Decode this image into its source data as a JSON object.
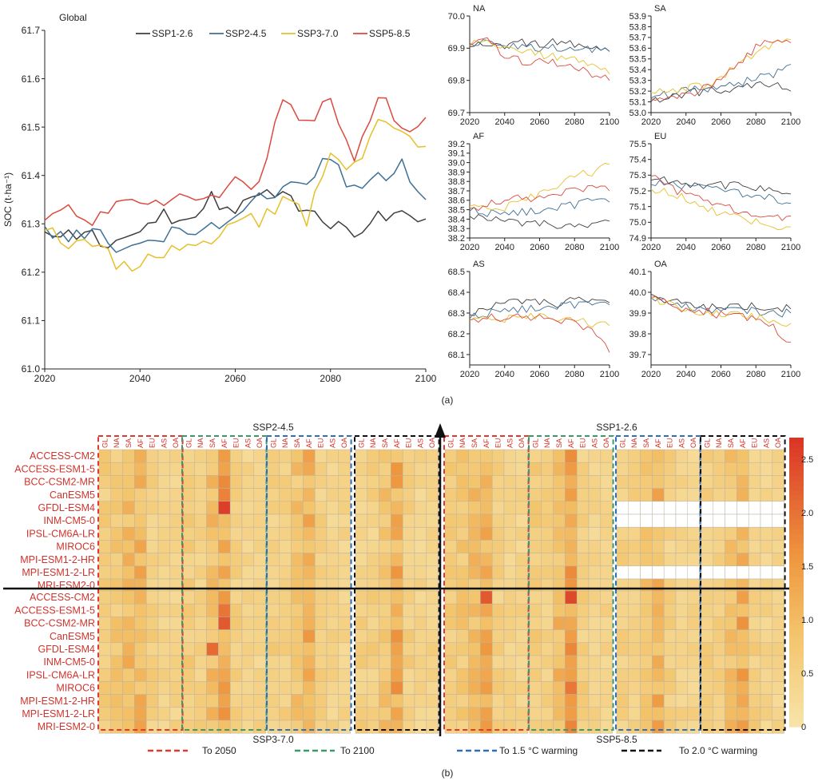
{
  "figure": {
    "panel_a_label": "(a)",
    "panel_b_label": "(b)"
  },
  "colors": {
    "SSP1-2.6": "#3f3f3f",
    "SSP2-4.5": "#3e6f95",
    "SSP3-7.0": "#e5c02b",
    "SSP5-8.5": "#db4a3f",
    "to_2050": "#e03a2f",
    "to_2100": "#3a9a6a",
    "to_1_5": "#2f6fb5",
    "to_2_0": "#111111"
  },
  "chart_data": [
    {
      "id": "global",
      "type": "line",
      "title": "Global",
      "ylabel": "SOC (t·ha⁻¹)",
      "xlabel": "",
      "xlim": [
        2020,
        2100
      ],
      "ylim": [
        61.0,
        61.7
      ],
      "xticks": [
        "2020",
        "2040",
        "2060",
        "2080",
        "2100"
      ],
      "yticks": [
        "61.0",
        "61.1",
        "61.2",
        "61.3",
        "61.4",
        "61.5",
        "61.6",
        "61.7"
      ],
      "legend": [
        "SSP1-2.6",
        "SSP2-4.5",
        "SSP3-7.0",
        "SSP5-8.5"
      ],
      "x_years": [
        2020,
        2025,
        2030,
        2035,
        2040,
        2045,
        2050,
        2055,
        2060,
        2065,
        2070,
        2075,
        2080,
        2085,
        2090,
        2095,
        2100
      ],
      "series": [
        {
          "name": "SSP1-2.6",
          "values": [
            61.29,
            61.27,
            61.28,
            61.25,
            61.3,
            61.32,
            61.31,
            61.35,
            61.33,
            61.36,
            61.36,
            61.33,
            61.3,
            61.27,
            61.33,
            61.31,
            61.31
          ]
        },
        {
          "name": "SSP2-4.5",
          "values": [
            61.3,
            61.26,
            61.29,
            61.24,
            61.25,
            61.28,
            61.28,
            61.3,
            61.31,
            61.35,
            61.37,
            61.39,
            61.44,
            61.37,
            61.4,
            61.42,
            61.35
          ]
        },
        {
          "name": "SSP3-7.0",
          "values": [
            61.29,
            61.26,
            61.26,
            61.22,
            61.21,
            61.24,
            61.26,
            61.27,
            61.32,
            61.3,
            61.35,
            61.31,
            61.45,
            61.41,
            61.5,
            61.48,
            61.46
          ]
        },
        {
          "name": "SSP5-8.5",
          "values": [
            61.31,
            61.33,
            61.31,
            61.34,
            61.35,
            61.34,
            61.36,
            61.35,
            61.4,
            61.38,
            61.55,
            61.5,
            61.56,
            61.44,
            61.57,
            61.49,
            61.52
          ]
        }
      ]
    },
    {
      "id": "NA",
      "type": "line",
      "title": "NA",
      "xlim": [
        2020,
        2100
      ],
      "ylim": [
        69.7,
        70.0
      ],
      "xticks": [
        "2020",
        "2040",
        "2060",
        "2080",
        "2100"
      ],
      "yticks": [
        "69.7",
        "69.8",
        "69.9",
        "70.0"
      ],
      "x_years": [
        2020,
        2030,
        2040,
        2050,
        2060,
        2070,
        2080,
        2090,
        2100
      ],
      "series": [
        {
          "name": "SSP1-2.6",
          "values": [
            69.91,
            69.92,
            69.91,
            69.92,
            69.91,
            69.92,
            69.91,
            69.9,
            69.89
          ]
        },
        {
          "name": "SSP2-4.5",
          "values": [
            69.92,
            69.92,
            69.91,
            69.91,
            69.9,
            69.9,
            69.89,
            69.9,
            69.89
          ]
        },
        {
          "name": "SSP3-7.0",
          "values": [
            69.91,
            69.93,
            69.9,
            69.89,
            69.88,
            69.87,
            69.86,
            69.85,
            69.82
          ]
        },
        {
          "name": "SSP5-8.5",
          "values": [
            69.91,
            69.92,
            69.88,
            69.86,
            69.86,
            69.85,
            69.84,
            69.82,
            69.8
          ]
        }
      ]
    },
    {
      "id": "SA",
      "type": "line",
      "title": "SA",
      "xlim": [
        2020,
        2100
      ],
      "ylim": [
        53.0,
        53.9
      ],
      "xticks": [
        "2020",
        "2040",
        "2060",
        "2080",
        "2100"
      ],
      "yticks": [
        "53.0",
        "53.1",
        "53.2",
        "53.3",
        "53.4",
        "53.5",
        "53.6",
        "53.7",
        "53.8",
        "53.9"
      ],
      "x_years": [
        2020,
        2030,
        2040,
        2050,
        2060,
        2070,
        2080,
        2090,
        2100
      ],
      "series": [
        {
          "name": "SSP1-2.6",
          "values": [
            53.12,
            53.14,
            53.18,
            53.2,
            53.22,
            53.24,
            53.25,
            53.26,
            53.2
          ]
        },
        {
          "name": "SSP2-4.5",
          "values": [
            53.15,
            53.17,
            53.2,
            53.22,
            53.22,
            53.27,
            53.33,
            53.36,
            53.45
          ]
        },
        {
          "name": "SSP3-7.0",
          "values": [
            53.2,
            53.18,
            53.22,
            53.25,
            53.32,
            53.45,
            53.55,
            53.65,
            53.68
          ]
        },
        {
          "name": "SSP5-8.5",
          "values": [
            53.14,
            53.16,
            53.17,
            53.22,
            53.3,
            53.45,
            53.6,
            53.68,
            53.65
          ]
        }
      ]
    },
    {
      "id": "AF",
      "type": "line",
      "title": "AF",
      "xlim": [
        2020,
        2100
      ],
      "ylim": [
        38.2,
        39.2
      ],
      "xticks": [
        "2020",
        "2040",
        "2060",
        "2080",
        "2100"
      ],
      "yticks": [
        "38.2",
        "38.3",
        "38.4",
        "38.5",
        "38.6",
        "38.7",
        "38.8",
        "38.9",
        "39.0",
        "39.1",
        "39.2"
      ],
      "x_years": [
        2020,
        2030,
        2040,
        2050,
        2060,
        2070,
        2080,
        2090,
        2100
      ],
      "series": [
        {
          "name": "SSP1-2.6",
          "values": [
            38.45,
            38.4,
            38.38,
            38.36,
            38.35,
            38.33,
            38.3,
            38.32,
            38.38
          ]
        },
        {
          "name": "SSP2-4.5",
          "values": [
            38.5,
            38.47,
            38.45,
            38.48,
            38.5,
            38.52,
            38.55,
            38.6,
            38.58
          ]
        },
        {
          "name": "SSP3-7.0",
          "values": [
            38.55,
            38.5,
            38.52,
            38.6,
            38.65,
            38.75,
            38.85,
            38.9,
            38.98
          ]
        },
        {
          "name": "SSP5-8.5",
          "values": [
            38.52,
            38.55,
            38.6,
            38.62,
            38.62,
            38.68,
            38.7,
            38.75,
            38.7
          ]
        }
      ]
    },
    {
      "id": "EU",
      "type": "line",
      "title": "EU",
      "xlim": [
        2020,
        2100
      ],
      "ylim": [
        74.9,
        75.5
      ],
      "xticks": [
        "2020",
        "2040",
        "2060",
        "2080",
        "2100"
      ],
      "yticks": [
        "74.9",
        "75.0",
        "75.1",
        "75.2",
        "75.3",
        "75.4",
        "75.5"
      ],
      "x_years": [
        2020,
        2030,
        2040,
        2050,
        2060,
        2070,
        2080,
        2090,
        2100
      ],
      "series": [
        {
          "name": "SSP1-2.6",
          "values": [
            75.28,
            75.27,
            75.25,
            75.24,
            75.24,
            75.23,
            75.22,
            75.22,
            75.18
          ]
        },
        {
          "name": "SSP2-4.5",
          "values": [
            75.25,
            75.24,
            75.23,
            75.22,
            75.2,
            75.18,
            75.17,
            75.15,
            75.12
          ]
        },
        {
          "name": "SSP3-7.0",
          "values": [
            75.22,
            75.18,
            75.15,
            75.1,
            75.05,
            75.02,
            75.0,
            74.98,
            74.97
          ]
        },
        {
          "name": "SSP5-8.5",
          "values": [
            75.3,
            75.22,
            75.18,
            75.15,
            75.12,
            75.08,
            75.05,
            75.02,
            75.04
          ]
        }
      ]
    },
    {
      "id": "AS",
      "type": "line",
      "title": "AS",
      "xlim": [
        2020,
        2100
      ],
      "ylim": [
        68.05,
        68.5
      ],
      "xticks": [
        "2020",
        "2040",
        "2060",
        "2080",
        "2100"
      ],
      "yticks": [
        "68.1",
        "68.2",
        "68.3",
        "68.4",
        "68.5"
      ],
      "x_years": [
        2020,
        2030,
        2040,
        2050,
        2060,
        2070,
        2080,
        2090,
        2100
      ],
      "series": [
        {
          "name": "SSP1-2.6",
          "values": [
            68.3,
            68.32,
            68.35,
            68.36,
            68.35,
            68.34,
            68.36,
            68.35,
            68.35
          ]
        },
        {
          "name": "SSP2-4.5",
          "values": [
            68.28,
            68.3,
            68.31,
            68.32,
            68.33,
            68.33,
            68.34,
            68.34,
            68.34
          ]
        },
        {
          "name": "SSP3-7.0",
          "values": [
            68.27,
            68.27,
            68.27,
            68.28,
            68.28,
            68.27,
            68.26,
            68.25,
            68.24
          ]
        },
        {
          "name": "SSP5-8.5",
          "values": [
            68.27,
            68.28,
            68.27,
            68.28,
            68.28,
            68.27,
            68.25,
            68.22,
            68.11
          ]
        }
      ]
    },
    {
      "id": "OA",
      "type": "line",
      "title": "OA",
      "xlim": [
        2020,
        2100
      ],
      "ylim": [
        39.65,
        40.1
      ],
      "xticks": [
        "2020",
        "2040",
        "2060",
        "2080",
        "2100"
      ],
      "yticks": [
        "39.7",
        "39.8",
        "39.9",
        "40.0",
        "40.1"
      ],
      "x_years": [
        2020,
        2030,
        2040,
        2050,
        2060,
        2070,
        2080,
        2090,
        2100
      ],
      "series": [
        {
          "name": "SSP1-2.6",
          "values": [
            40.0,
            39.95,
            39.95,
            39.93,
            39.93,
            39.93,
            39.93,
            39.93,
            39.92
          ]
        },
        {
          "name": "SSP2-4.5",
          "values": [
            39.98,
            39.95,
            39.93,
            39.92,
            39.92,
            39.91,
            39.91,
            39.9,
            39.9
          ]
        },
        {
          "name": "SSP3-7.0",
          "values": [
            39.97,
            39.94,
            39.92,
            39.9,
            39.9,
            39.89,
            39.88,
            39.87,
            39.85
          ]
        },
        {
          "name": "SSP5-8.5",
          "values": [
            39.98,
            39.94,
            39.92,
            39.91,
            39.89,
            39.88,
            39.87,
            39.83,
            39.76
          ]
        }
      ]
    },
    {
      "id": "heatmap",
      "type": "heatmap",
      "scenario_labels": {
        "top_left": "SSP2-4.5",
        "top_right": "SSP1-2.6",
        "bottom_left": "SSP3-7.0",
        "bottom_right": "SSP5-8.5"
      },
      "regions": [
        "GL",
        "NA",
        "SA",
        "AF",
        "EU",
        "AS",
        "OA"
      ],
      "models": [
        "ACCESS-CM2",
        "ACCESS-ESM1-5",
        "BCC-CSM2-MR",
        "CanESM5",
        "GFDL-ESM4",
        "INM-CM5-0",
        "IPSL-CM6A-LR",
        "MIROC6",
        "MPI-ESM1-2-HR",
        "MPI-ESM1-2-LR",
        "MRI-ESM2-0"
      ],
      "periods": [
        "To 2050",
        "To 2100",
        "To 1.5 °C warming",
        "To 2.0 °C warming"
      ],
      "colorbar": {
        "min": 0,
        "max": 2.7,
        "ticks": [
          "0",
          "0.5",
          "1.0",
          "1.5",
          "2.0",
          "2.5"
        ]
      },
      "region_mean_by_period": [
        [
          0.7,
          0.8,
          1.0,
          1.2,
          0.6,
          0.5,
          0.5
        ],
        [
          0.7,
          0.6,
          1.0,
          1.5,
          0.6,
          0.5,
          0.5
        ],
        [
          0.6,
          0.6,
          0.9,
          1.2,
          0.6,
          0.5,
          0.5
        ],
        [
          0.6,
          0.6,
          0.9,
          1.3,
          0.6,
          0.5,
          0.5
        ]
      ],
      "highlights": [
        {
          "scenario": "SSP2-4.5",
          "model": "GFDL-ESM4",
          "period": "To 2100",
          "region": "AF",
          "value": 2.6
        },
        {
          "scenario": "SSP5-8.5",
          "model": "ACCESS-CM2",
          "period": "To 2050",
          "region": "AF",
          "value": 2.3
        },
        {
          "scenario": "SSP5-8.5",
          "model": "ACCESS-CM2",
          "period": "To 2100",
          "region": "AF",
          "value": 2.5
        },
        {
          "scenario": "SSP3-7.0",
          "model": "BCC-CSM2-MR",
          "period": "To 2100",
          "region": "AF",
          "value": 2.3
        },
        {
          "scenario": "SSP3-7.0",
          "model": "GFDL-ESM4",
          "period": "To 2100",
          "region": "SA",
          "value": 2.1
        }
      ],
      "missing": [
        {
          "scenario": "SSP1-2.6",
          "models": [
            "GFDL-ESM4",
            "INM-CM5-0"
          ],
          "periods": [
            "To 1.5 °C warming",
            "To 2.0 °C warming"
          ]
        },
        {
          "scenario": "SSP1-2.6",
          "models": [
            "MPI-ESM1-2-LR"
          ],
          "periods": [
            "To 1.5 °C warming",
            "To 2.0 °C warming"
          ]
        }
      ]
    }
  ]
}
